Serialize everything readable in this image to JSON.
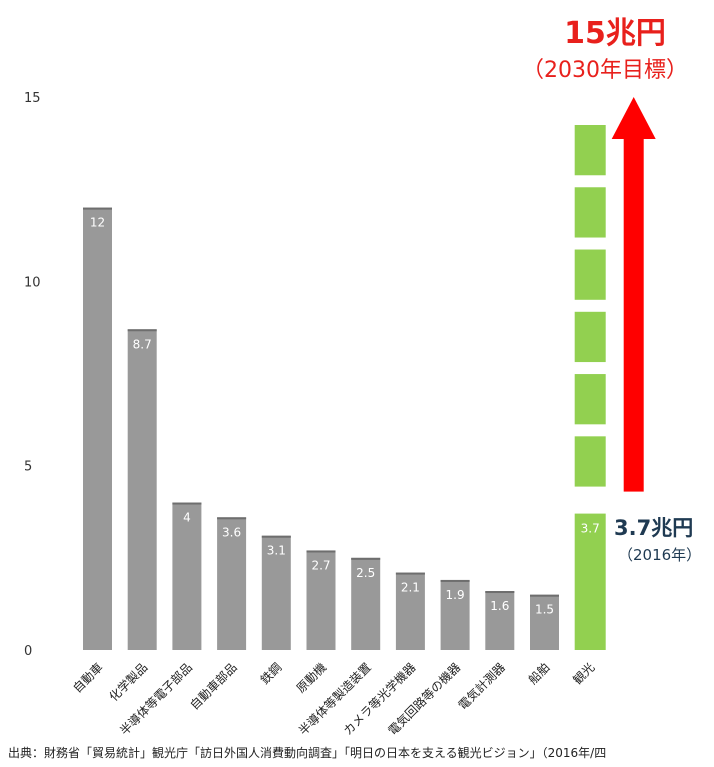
{
  "chart_data": {
    "type": "bar",
    "categories": [
      "自動車",
      "化学製品",
      "半導体等電子部品",
      "自動車部品",
      "鉄鋼",
      "原動機",
      "半導体等製造装置",
      "カメラ等光学機器",
      "電気回路等の機器",
      "電気計測器",
      "船舶",
      "観光"
    ],
    "values": [
      12,
      8.7,
      4,
      3.6,
      3.1,
      2.7,
      2.5,
      2.1,
      1.9,
      1.6,
      1.5,
      3.7
    ],
    "data_labels": [
      "12",
      "8.7",
      "4",
      "3.6",
      "3.1",
      "2.7",
      "2.5",
      "2.1",
      "1.9",
      "1.6",
      "1.5",
      "3.7"
    ],
    "ylim": [
      0,
      15
    ],
    "yticks": [
      0,
      5,
      10,
      15
    ],
    "ytick_labels": [
      "0",
      "5",
      "10",
      "15"
    ],
    "grid": false,
    "colors": {
      "bar": "#999999",
      "highlight": "#92d050",
      "arrow": "#ff0000"
    },
    "highlight_category": "観光",
    "target_value": 15
  },
  "annotations": {
    "target_amount": "15兆円",
    "target_year": "（2030年目標）",
    "current_amount": "3.7兆円",
    "current_year": "（2016年）"
  },
  "source": "出典：財務省「貿易統計」観光庁「訪日外国人消費動向調査」「明日の日本を支える観光ビジョン」（2016年/四"
}
